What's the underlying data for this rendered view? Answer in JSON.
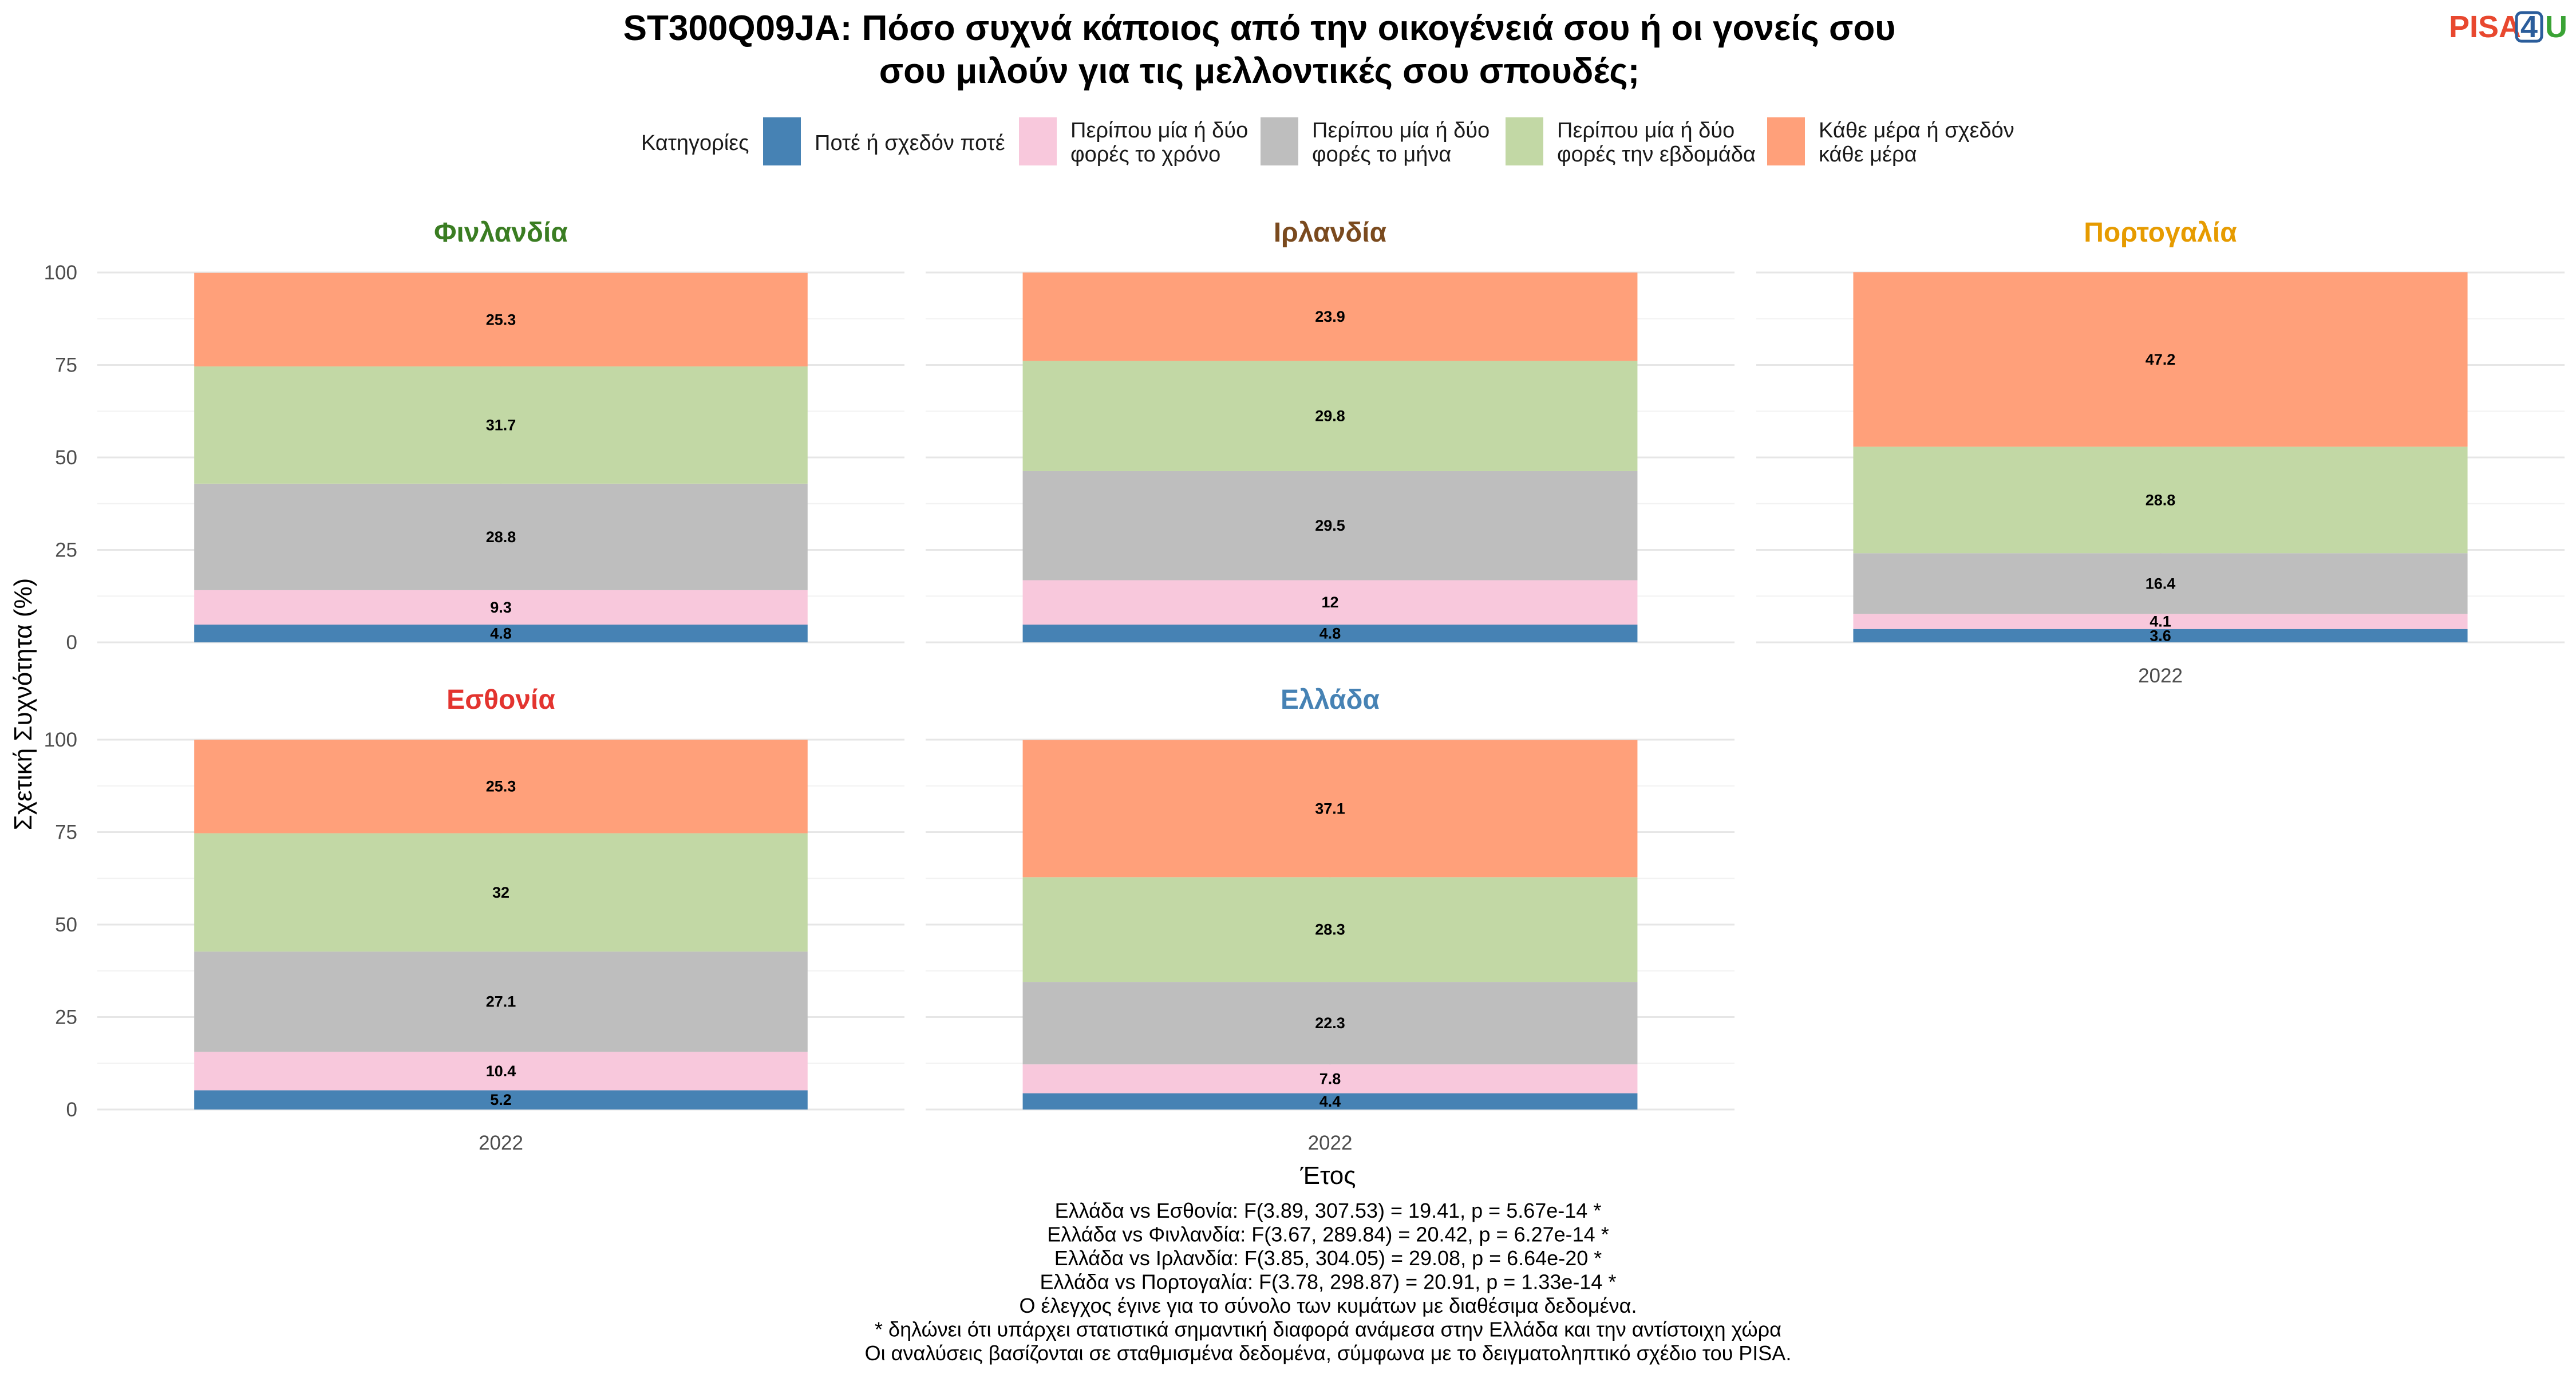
{
  "title_lines": [
    "ST300Q09JA: Πόσο συχνά κάποιος από την οικογένειά σου ή οι γονείς σου",
    "σου μιλούν για τις μελλοντικές σου σπουδές;"
  ],
  "logo": {
    "text_pisa": "PISA",
    "text_4": "4",
    "text_u": "U",
    "color_pisa": "#e8482f",
    "color_4": "#2b5d9b",
    "color_u": "#3aa335"
  },
  "legend": {
    "title": "Κατηγορίες",
    "items": [
      {
        "lines": [
          "Ποτέ ή σχεδόν ποτέ"
        ],
        "color": "#4682b4"
      },
      {
        "lines": [
          "Περίπου μία ή δύο",
          "φορές το χρόνο"
        ],
        "color": "#f8c8dc"
      },
      {
        "lines": [
          "Περίπου μία ή δύο",
          "φορές το μήνα"
        ],
        "color": "#bebebe"
      },
      {
        "lines": [
          "Περίπου μία ή δύο",
          "φορές την εβδομάδα"
        ],
        "color": "#c2d8a5"
      },
      {
        "lines": [
          "Κάθε μέρα ή σχεδόν",
          "κάθε μέρα"
        ],
        "color": "#ffa07a"
      }
    ]
  },
  "chart_data": {
    "type": "bar",
    "stacked": true,
    "xlabel": "Έτος",
    "ylabel": "Σχετική Συχνότητα (%)",
    "ylim": [
      0,
      100
    ],
    "yticks": [
      0,
      25,
      50,
      75,
      100
    ],
    "grid": true,
    "legend_position": "top",
    "categories": [
      "2022"
    ],
    "facets": [
      {
        "name": "Φινλανδία",
        "color": "#3a7d22",
        "year": "2022",
        "values": [
          4.8,
          9.3,
          28.8,
          31.7,
          25.3
        ]
      },
      {
        "name": "Ιρλανδία",
        "color": "#7a4a1e",
        "year": "2022",
        "values": [
          4.8,
          12,
          29.5,
          29.8,
          23.9
        ]
      },
      {
        "name": "Πορτογαλία",
        "color": "#e69b00",
        "year": "2022",
        "values": [
          3.6,
          4.1,
          16.4,
          28.8,
          47.2
        ]
      },
      {
        "name": "Εσθονία",
        "color": "#e3342f",
        "year": "2022",
        "values": [
          5.2,
          10.4,
          27.1,
          32,
          25.3
        ]
      },
      {
        "name": "Ελλάδα",
        "color": "#4682b4",
        "year": "2022",
        "values": [
          4.4,
          7.8,
          22.3,
          28.3,
          37.1
        ]
      }
    ]
  },
  "caption_lines": [
    "Ελλάδα vs Εσθονία: F(3.89, 307.53) = 19.41, p = 5.67e-14 *",
    "Ελλάδα vs Φινλανδία: F(3.67, 289.84) = 20.42, p = 6.27e-14 *",
    "Ελλάδα vs Ιρλανδία: F(3.85, 304.05) = 29.08, p = 6.64e-20 *",
    "Ελλάδα vs Πορτογαλία: F(3.78, 298.87) = 20.91, p = 1.33e-14 *",
    "Ο έλεγχος έγινε για το σύνολο των κυμάτων με διαθέσιμα δεδομένα.",
    "* δηλώνει ότι υπάρχει στατιστικά σημαντική διαφορά ανάμεσα στην Ελλάδα και την αντίστοιχη χώρα",
    "Οι αναλύσεις βασίζονται σε σταθμισμένα δεδομένα, σύμφωνα με το δειγματοληπτικό σχέδιο του PISA."
  ]
}
